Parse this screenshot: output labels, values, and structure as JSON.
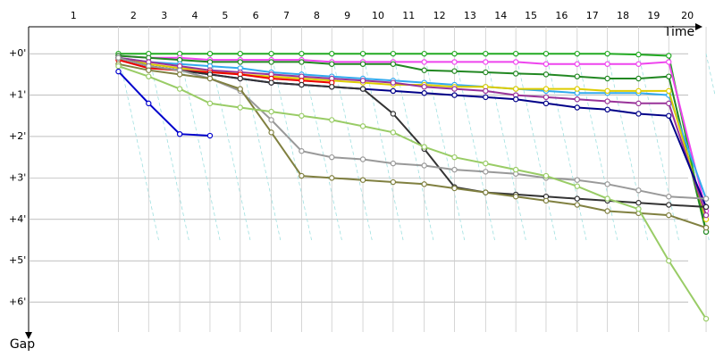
{
  "chart_data": {
    "type": "line",
    "x_label": "Time",
    "y_label": "Gap",
    "categories": [
      "1",
      "2",
      "3",
      "4",
      "5",
      "6",
      "7",
      "8",
      "9",
      "10",
      "11",
      "12",
      "13",
      "14",
      "15",
      "16",
      "17",
      "18",
      "19",
      "20"
    ],
    "x": [
      101,
      135,
      170,
      204,
      238,
      273,
      307,
      341,
      376,
      410,
      445,
      479,
      514,
      548,
      582,
      617,
      651,
      686,
      720,
      762
    ],
    "xlim": [
      0,
      770
    ],
    "ylim": [
      -0.65,
      7.0
    ],
    "yticks": [
      {
        "value": 0,
        "label": "+0'"
      },
      {
        "value": 1,
        "label": "+1'"
      },
      {
        "value": 2,
        "label": "+2'"
      },
      {
        "value": 3,
        "label": "+3'"
      },
      {
        "value": 4,
        "label": "+4'"
      },
      {
        "value": 5,
        "label": "+5'"
      },
      {
        "value": 6,
        "label": "+6'"
      }
    ],
    "grid": true,
    "series": [
      {
        "color": "#22aa22",
        "values": [
          0,
          0,
          0,
          0,
          0,
          0,
          0,
          0,
          0,
          0,
          0,
          0,
          0,
          0,
          0,
          0,
          0,
          0.02,
          0.05,
          4.3
        ]
      },
      {
        "color": "#ee44ee",
        "values": [
          0.05,
          0.1,
          0.1,
          0.15,
          0.15,
          0.15,
          0.15,
          0.2,
          0.2,
          0.2,
          0.2,
          0.2,
          0.2,
          0.2,
          0.25,
          0.25,
          0.25,
          0.25,
          0.2,
          3.8
        ]
      },
      {
        "color": "#228822",
        "values": [
          0.05,
          0.1,
          0.15,
          0.2,
          0.2,
          0.2,
          0.2,
          0.25,
          0.25,
          0.25,
          0.4,
          0.42,
          0.45,
          0.48,
          0.5,
          0.55,
          0.6,
          0.6,
          0.55,
          4.3
        ]
      },
      {
        "color": "#33aaee",
        "values": [
          0.1,
          0.2,
          0.25,
          0.3,
          0.35,
          0.45,
          0.5,
          0.55,
          0.6,
          0.65,
          0.7,
          0.75,
          0.8,
          0.85,
          0.9,
          0.95,
          0.95,
          0.95,
          1.0,
          3.5
        ]
      },
      {
        "color": "#ddcc00",
        "values": [
          0.1,
          0.25,
          0.35,
          0.4,
          0.5,
          0.55,
          0.6,
          0.65,
          0.7,
          0.75,
          0.75,
          0.8,
          0.8,
          0.85,
          0.85,
          0.85,
          0.9,
          0.9,
          0.9,
          4.0
        ]
      },
      {
        "color": "#993399",
        "values": [
          0.1,
          0.2,
          0.3,
          0.4,
          0.45,
          0.5,
          0.55,
          0.6,
          0.65,
          0.7,
          0.8,
          0.85,
          0.9,
          1.0,
          1.05,
          1.1,
          1.15,
          1.2,
          1.2,
          3.9
        ]
      },
      {
        "color": "#000088",
        "values": [
          0.1,
          0.3,
          0.4,
          0.5,
          0.6,
          0.7,
          0.75,
          0.8,
          0.85,
          0.9,
          0.95,
          1.0,
          1.05,
          1.1,
          1.2,
          1.3,
          1.35,
          1.45,
          1.5,
          3.7
        ]
      },
      {
        "color": "#ee0000",
        "values": [
          0.15,
          0.35,
          0.4,
          0.45,
          0.5,
          0.6,
          0.65,
          0.7,
          null,
          null,
          null,
          null,
          null,
          null,
          null,
          null,
          null,
          null,
          null,
          null
        ]
      },
      {
        "color": "#333333",
        "values": [
          0.1,
          0.3,
          0.4,
          0.5,
          0.6,
          0.7,
          0.75,
          0.8,
          0.85,
          1.45,
          2.3,
          3.22,
          3.35,
          3.4,
          3.45,
          3.5,
          3.55,
          3.6,
          3.65,
          3.7
        ]
      },
      {
        "color": "#999999",
        "values": [
          0.1,
          0.3,
          0.4,
          0.6,
          0.9,
          1.6,
          2.35,
          2.5,
          2.55,
          2.65,
          2.7,
          2.8,
          2.85,
          2.9,
          3.0,
          3.05,
          3.15,
          3.3,
          3.45,
          3.5
        ]
      },
      {
        "color": "#808040",
        "values": [
          0.25,
          0.4,
          0.5,
          0.6,
          0.85,
          1.9,
          2.95,
          3.0,
          3.05,
          3.1,
          3.15,
          3.25,
          3.35,
          3.45,
          3.55,
          3.65,
          3.8,
          3.85,
          3.9,
          4.2
        ]
      },
      {
        "color": "#99cc66",
        "values": [
          0.3,
          0.55,
          0.85,
          1.2,
          1.3,
          1.4,
          1.5,
          1.6,
          1.75,
          1.9,
          2.25,
          2.5,
          2.65,
          2.8,
          2.95,
          3.2,
          3.5,
          3.75,
          5.0,
          6.4
        ]
      },
      {
        "color": "#0000cc",
        "values": [
          0.43,
          1.2,
          1.94,
          1.98,
          null,
          null,
          null,
          null,
          null,
          null,
          null,
          null,
          null,
          null,
          null,
          null,
          null,
          null,
          null,
          null
        ]
      }
    ]
  }
}
